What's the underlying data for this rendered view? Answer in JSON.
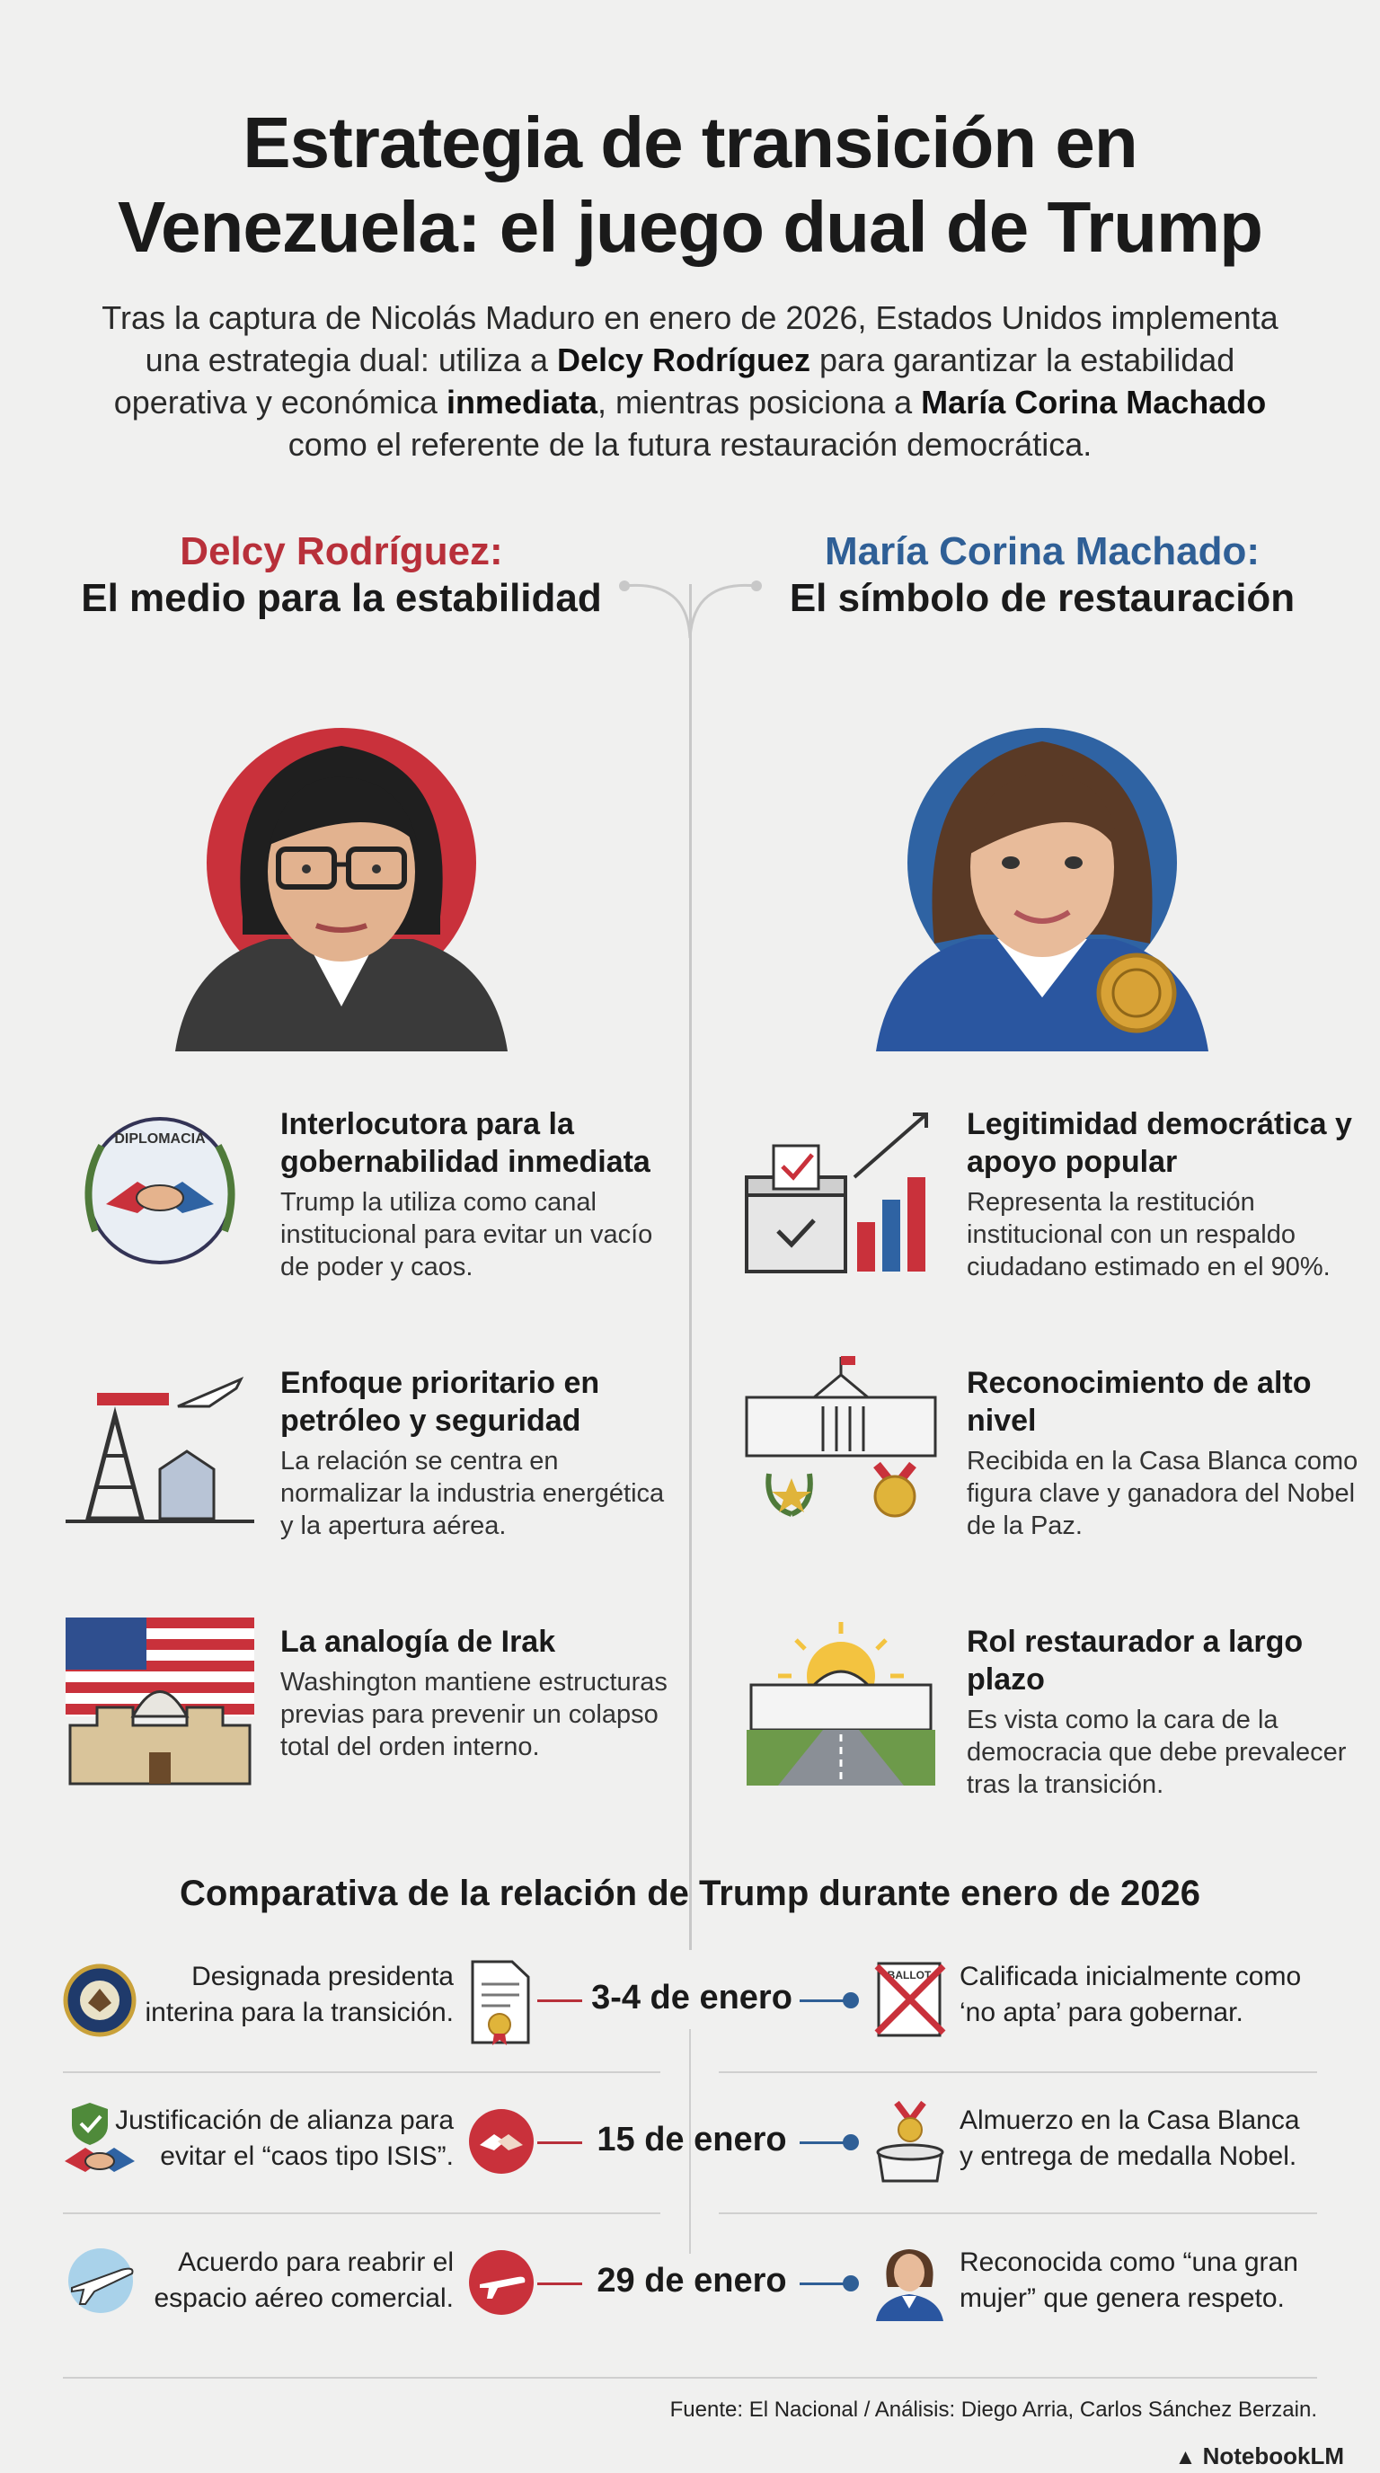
{
  "title_line1": "Estrategia de transición en",
  "title_line2": "Venezuela: el juego dual de Trump",
  "intro": {
    "p1": "Tras la captura de Nicolás Maduro en enero de 2026, Estados Unidos implementa una estrategia dual: utiliza a ",
    "b1": "Delcy Rodríguez",
    "p2": " para garantizar la estabilidad operativa y económica ",
    "b2": "inmediata",
    "p3": ", mientras posiciona a ",
    "b3": "María Corina Machado",
    "p4": " como el referente de la futura restauración democrática."
  },
  "left": {
    "name": "Delcy Rodríguez:",
    "subtitle": "El medio para la estabilidad",
    "accent": "#b8303a",
    "items": [
      {
        "title": "Interlocutora para la gobernabilidad inmediata",
        "desc": "Trump la utiliza como canal institucional para evitar un vacío de poder y caos.",
        "icon": "handshake-wreath-icon",
        "icon_text": "DIPLOMACIA"
      },
      {
        "title": "Enfoque prioritario en petróleo y seguridad",
        "desc": "La relación se centra en normalizar la industria energética y la apertura aérea.",
        "icon": "oil-rig-plane-icon"
      },
      {
        "title": "La analogía de Irak",
        "desc": "Washington mantiene estructuras previas para prevenir un colapso total del orden interno.",
        "icon": "flag-capitol-castle-icon"
      }
    ]
  },
  "right": {
    "name": "María Corina Machado:",
    "subtitle": "El símbolo de restauración",
    "accent": "#2f5f96",
    "items": [
      {
        "title": "Legitimidad democrática y apoyo popular",
        "desc": "Representa la restitución institucional con un respaldo ciudadano estimado en el 90%.",
        "icon": "ballot-box-chart-icon"
      },
      {
        "title": "Reconocimiento de alto nivel",
        "desc": "Recibida en la Casa Blanca como figura clave y ganadora del Nobel de la Paz.",
        "icon": "white-house-medal-icon"
      },
      {
        "title": "Rol restaurador a largo plazo",
        "desc": "Es vista como la cara de la democracia que debe prevalecer tras la transición.",
        "icon": "sunrise-road-icon"
      }
    ]
  },
  "comparison": {
    "title": "Comparativa de la relación de Trump durante enero de 2026",
    "rows": [
      {
        "date": "3-4 de enero",
        "left": "Designada presidenta interina para la transición.",
        "right": "Calificada inicialmente como ‘no apta’ para gobernar.",
        "left_icon": "presidential-seal-icon",
        "center_icon": "document-certificate-icon",
        "right_icon": "crossed-ballot-icon",
        "ballot_text": "BALLOT"
      },
      {
        "date": "15 de enero",
        "left": "Justificación de alianza para evitar el “caos tipo ISIS”.",
        "right": "Almuerzo en la Casa Blanca y entrega de medalla Nobel.",
        "left_icon": "shield-handshake-icon",
        "center_icon": "handshake-icon",
        "right_icon": "dining-medal-icon"
      },
      {
        "date": "29 de enero",
        "left": "Acuerdo para reabrir el espacio aéreo comercial.",
        "right": "Reconocida como “una gran mujer” que genera respeto.",
        "left_icon": "airplane-icon",
        "center_icon": "airplane-icon",
        "right_icon": "woman-avatar-icon"
      }
    ]
  },
  "source": "Fuente: El Nacional / Análisis: Diego Arria, Carlos Sánchez Berzain.",
  "brand": "NotebookLM"
}
